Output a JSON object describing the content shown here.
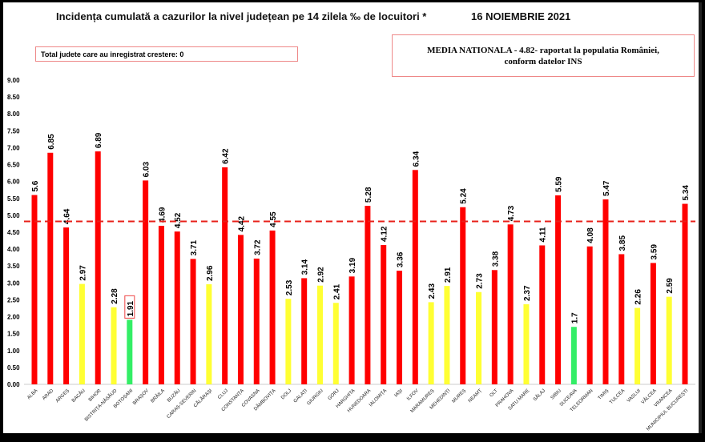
{
  "header": {
    "title": "Incidența cumulată a cazurilor la nivel județean pe 14 zilela ‰ de locuitori *",
    "date": "16 NOIEMBRIE 2021"
  },
  "info_box": {
    "text": "Total judete care au inregistrat crestere: 0"
  },
  "national_box": {
    "line1": "MEDIA NATIONALA - 4.82- raportat la populatia României,",
    "line2": "conform datelor INS"
  },
  "chart_data": {
    "type": "bar",
    "title": "Incidența cumulată a cazurilor la nivel județean pe 14 zilela ‰ de locuitori *",
    "ylim": [
      0,
      9
    ],
    "yticks": [
      "0.00",
      "0.50",
      "1.00",
      "1.50",
      "2.00",
      "2.50",
      "3.00",
      "3.50",
      "4.00",
      "4.50",
      "5.00",
      "5.50",
      "6.00",
      "6.50",
      "7.00",
      "7.50",
      "8.00",
      "8.50",
      "9.00"
    ],
    "grid": false,
    "reference_line": {
      "value": 4.82,
      "style": "dashed",
      "color": "#e8201a"
    },
    "colors": {
      "high": "#ff0000",
      "medium": "#ffff33",
      "low": "#33ee66"
    },
    "categories": [
      "ALBA",
      "ARAD",
      "ARGEȘ",
      "BACĂU",
      "BIHOR",
      "BISTRIȚA-NĂSĂUD",
      "BOTOȘANI",
      "BRAȘOV",
      "BRĂILA",
      "BUZĂU",
      "CARAȘ-SEVERIN",
      "CĂLĂRAȘI",
      "CLUJ",
      "CONSTANȚA",
      "COVASNA",
      "DÂMBOVIȚA",
      "DOLJ",
      "GALAȚI",
      "GIURGIU",
      "GORJ",
      "HARGHITA",
      "HUNEDOARA",
      "IALOMIȚA",
      "IAȘI",
      "ILFOV",
      "MARAMUREȘ",
      "MEHEDINȚI",
      "MUREȘ",
      "NEAMȚ",
      "OLT",
      "PRAHOVA",
      "SATU MARE",
      "SĂLAJ",
      "SIBIU",
      "SUCEAVA",
      "TELEORMAN",
      "TIMIȘ",
      "TULCEA",
      "VASLUI",
      "VÂLCEA",
      "VRANCEA",
      "MUNICIPIUL BUCUREȘTI"
    ],
    "values": [
      5.6,
      6.85,
      4.64,
      2.97,
      6.89,
      2.28,
      1.91,
      6.03,
      4.69,
      4.52,
      3.71,
      2.96,
      6.42,
      4.42,
      3.72,
      4.55,
      2.53,
      3.14,
      2.92,
      2.41,
      3.19,
      5.28,
      4.12,
      3.36,
      6.34,
      2.43,
      2.91,
      5.24,
      2.73,
      3.38,
      4.73,
      2.37,
      4.11,
      5.59,
      1.7,
      4.08,
      5.47,
      3.85,
      2.26,
      3.59,
      2.59,
      5.34
    ],
    "labels": [
      "5.6",
      "6.85",
      "4.64",
      "2.97",
      "6.89",
      "2.28",
      "1.91",
      "6.03",
      "4.69",
      "4.52",
      "3.71",
      "2.96",
      "6.42",
      "4.42",
      "3.72",
      "4.55",
      "2.53",
      "3.14",
      "2.92",
      "2.41",
      "3.19",
      "5.28",
      "4.12",
      "3.36",
      "6.34",
      "2.43",
      "2.91",
      "5.24",
      "2.73",
      "3.38",
      "4.73",
      "2.37",
      "4.11",
      "5.59",
      "1.7",
      "4.08",
      "5.47",
      "3.85",
      "2.26",
      "3.59",
      "2.59",
      "5.34"
    ]
  }
}
